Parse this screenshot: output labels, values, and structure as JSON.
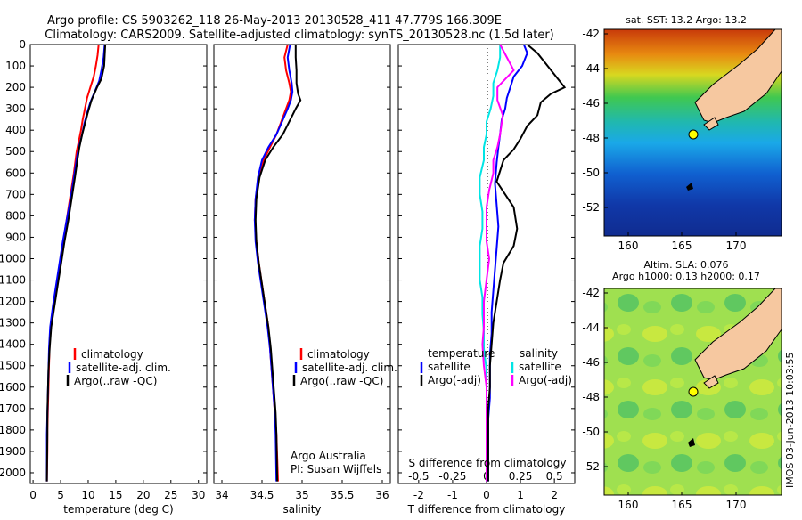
{
  "title": {
    "line1": "Argo profile: CS 5903262_118 26-May-2013 20130528_411 47.779S 166.309E",
    "line2": "Climatology: CARS2009. Satellite-adjusted climatology: synTS_20130528.nc (1.5d later)"
  },
  "colors": {
    "climatology": "#ff0000",
    "satellite": "#0000ff",
    "argo": "#000000",
    "satellite_s": "#00e5e5",
    "argo_s": "#ff00ff"
  },
  "depth_axis": {
    "ylim": [
      2050,
      0
    ],
    "ticks": [
      "0",
      "100",
      "200",
      "300",
      "400",
      "500",
      "600",
      "700",
      "800",
      "900",
      "1000",
      "1100",
      "1200",
      "1300",
      "1400",
      "1500",
      "1600",
      "1700",
      "1800",
      "1900",
      "2000"
    ]
  },
  "chart_data": [
    {
      "id": "temperature",
      "type": "line",
      "xlabel": "temperature (deg C)",
      "xlim": [
        -0.5,
        31.5
      ],
      "xticks": [
        "0",
        "5",
        "10",
        "15",
        "20",
        "25",
        "30"
      ],
      "legend": [
        "climatology",
        "satellite-adj. clim.",
        "Argo(..raw -QC)"
      ],
      "series": [
        {
          "name": "climatology",
          "color_key": "climatology",
          "x": [
            11.9,
            11.7,
            11.4,
            11.0,
            10.4,
            9.8,
            9.4,
            9.0,
            8.7,
            8.3,
            7.9,
            7.4,
            6.8,
            6.2,
            5.6,
            5.0,
            4.5,
            3.9,
            3.3,
            3.0,
            2.9,
            2.8,
            2.7,
            2.6,
            2.6,
            2.5
          ],
          "y": [
            0,
            50,
            100,
            150,
            200,
            250,
            300,
            350,
            400,
            450,
            500,
            600,
            700,
            800,
            900,
            1000,
            1100,
            1200,
            1300,
            1400,
            1500,
            1600,
            1700,
            1800,
            1900,
            2040
          ]
        },
        {
          "name": "satellite-adj. clim.",
          "color_key": "satellite",
          "x": [
            13.0,
            12.8,
            12.4,
            12.0,
            11.2,
            10.4,
            9.8,
            9.3,
            8.9,
            8.4,
            8.0,
            7.4,
            6.8,
            6.1,
            5.4,
            4.8,
            4.2,
            3.6,
            3.1,
            2.9,
            2.8,
            2.7,
            2.6,
            2.5,
            2.5
          ],
          "y": [
            0,
            60,
            120,
            170,
            220,
            270,
            320,
            370,
            420,
            470,
            520,
            620,
            720,
            820,
            920,
            1020,
            1120,
            1220,
            1320,
            1420,
            1520,
            1620,
            1720,
            1820,
            2040
          ]
        },
        {
          "name": "Argo(..raw -QC)",
          "color_key": "argo",
          "x": [
            13.1,
            13.0,
            12.9,
            12.4,
            11.6,
            10.6,
            9.9,
            9.4,
            8.9,
            8.4,
            8.1,
            7.6,
            7.0,
            6.4,
            5.7,
            5.1,
            4.5,
            3.9,
            3.3,
            3.0,
            2.8,
            2.7,
            2.6,
            2.6,
            2.5
          ],
          "y": [
            0,
            50,
            100,
            160,
            200,
            260,
            320,
            370,
            420,
            480,
            530,
            620,
            720,
            820,
            920,
            1020,
            1120,
            1220,
            1320,
            1420,
            1520,
            1620,
            1720,
            1820,
            2040
          ]
        }
      ]
    },
    {
      "id": "salinity",
      "type": "line",
      "xlabel": "salinity",
      "xlim": [
        33.9,
        36.1
      ],
      "xticks": [
        "34",
        "34.5",
        "35",
        "35.5",
        "36"
      ],
      "legend": [
        "climatology",
        "satellite-adj. clim.",
        "Argo(..raw -QC)"
      ],
      "annotation": [
        "Argo Australia",
        "PI: Susan Wijffels"
      ],
      "series": [
        {
          "name": "climatology",
          "color_key": "climatology",
          "x": [
            34.82,
            34.78,
            34.8,
            34.84,
            34.86,
            34.84,
            34.8,
            34.74,
            34.68,
            34.6,
            34.52,
            34.46,
            34.42,
            34.41,
            34.43,
            34.46,
            34.5,
            34.54,
            34.58,
            34.6,
            34.62,
            34.64,
            34.66,
            34.68,
            34.7
          ],
          "y": [
            0,
            60,
            120,
            180,
            220,
            260,
            300,
            360,
            420,
            480,
            540,
            620,
            720,
            820,
            920,
            1020,
            1120,
            1220,
            1320,
            1420,
            1520,
            1620,
            1720,
            1820,
            2040
          ]
        },
        {
          "name": "satellite-adj. clim.",
          "color_key": "satellite",
          "x": [
            34.85,
            34.82,
            34.84,
            34.87,
            34.88,
            34.86,
            34.82,
            34.75,
            34.68,
            34.58,
            34.5,
            34.45,
            34.42,
            34.41,
            34.42,
            34.45,
            34.49,
            34.53,
            34.57,
            34.6,
            34.62,
            34.64,
            34.66,
            34.67,
            34.68
          ],
          "y": [
            0,
            60,
            120,
            180,
            220,
            260,
            300,
            360,
            420,
            480,
            540,
            620,
            720,
            820,
            920,
            1020,
            1120,
            1220,
            1320,
            1420,
            1520,
            1620,
            1720,
            1820,
            2040
          ]
        },
        {
          "name": "Argo(..raw -QC)",
          "color_key": "argo",
          "x": [
            34.92,
            34.92,
            34.93,
            34.93,
            34.95,
            34.98,
            34.92,
            34.84,
            34.76,
            34.64,
            34.54,
            34.47,
            34.43,
            34.42,
            34.43,
            34.46,
            34.5,
            34.54,
            34.58,
            34.61,
            34.63,
            34.65,
            34.67,
            34.68,
            34.69
          ],
          "y": [
            0,
            60,
            120,
            180,
            230,
            260,
            300,
            360,
            420,
            480,
            540,
            620,
            720,
            820,
            920,
            1020,
            1120,
            1220,
            1320,
            1420,
            1520,
            1620,
            1720,
            1820,
            2040
          ]
        }
      ]
    },
    {
      "id": "difference",
      "type": "line",
      "xlabel": "T difference from climatology",
      "xlabel_top": "S difference from climatology",
      "xlim": [
        -2.6,
        2.6
      ],
      "xticks": [
        "-2",
        "-1",
        "0",
        "1",
        "2"
      ],
      "xticks_s": [
        "-0.5",
        "-0.25",
        "0",
        "0.25",
        "0.5"
      ],
      "legend_headers": [
        "temperature",
        "salinity"
      ],
      "legend": [
        "satellite",
        "Argo(-adj)",
        "satellite",
        "Argo(-adj)"
      ],
      "series": [
        {
          "name": "satellite",
          "group": "temperature",
          "color_key": "satellite",
          "x": [
            1.1,
            1.2,
            1.05,
            0.8,
            0.7,
            0.6,
            0.55,
            0.45,
            0.4,
            0.35,
            0.3,
            0.25,
            0.3,
            0.35,
            0.3,
            0.25,
            0.2,
            0.15,
            0.15,
            0.1,
            0.1,
            0.1,
            0.05,
            0.05,
            0.05
          ],
          "y": [
            0,
            40,
            100,
            150,
            200,
            250,
            300,
            350,
            420,
            480,
            550,
            650,
            750,
            850,
            950,
            1050,
            1150,
            1250,
            1350,
            1450,
            1550,
            1650,
            1750,
            1850,
            2040
          ]
        },
        {
          "name": "Argo(-adj)",
          "group": "temperature",
          "color_key": "argo",
          "x": [
            1.2,
            1.5,
            1.8,
            2.3,
            1.9,
            1.6,
            1.5,
            1.2,
            1.0,
            0.8,
            0.5,
            0.3,
            0.8,
            0.9,
            0.8,
            0.5,
            0.4,
            0.3,
            0.2,
            0.15,
            0.1,
            0.1,
            0.05,
            0.05,
            0.05
          ],
          "y": [
            0,
            40,
            100,
            200,
            230,
            270,
            330,
            380,
            440,
            490,
            540,
            640,
            760,
            860,
            940,
            1020,
            1100,
            1200,
            1300,
            1400,
            1500,
            1600,
            1700,
            1800,
            2040
          ]
        },
        {
          "name": "satellite",
          "group": "salinity",
          "color_key": "satellite_s",
          "x": [
            0.1,
            0.1,
            0.08,
            0.05,
            0.05,
            0.03,
            0.0,
            0.0,
            -0.02,
            -0.02,
            -0.05,
            -0.05,
            -0.03,
            -0.03,
            -0.05,
            -0.05,
            -0.05,
            -0.03,
            -0.03,
            -0.02,
            -0.02,
            0.0,
            0.0,
            0.0,
            0.0
          ],
          "y": [
            0,
            60,
            120,
            180,
            240,
            300,
            360,
            420,
            480,
            540,
            620,
            700,
            780,
            860,
            940,
            1020,
            1100,
            1180,
            1260,
            1340,
            1420,
            1520,
            1640,
            1800,
            2040
          ]
        },
        {
          "name": "Argo(-adj)",
          "group": "salinity",
          "color_key": "argo_s",
          "x": [
            0.1,
            0.15,
            0.2,
            0.08,
            0.08,
            0.12,
            0.1,
            0.08,
            0.05,
            0.05,
            0.02,
            0.0,
            0.0,
            0.0,
            0.02,
            0.0,
            -0.02,
            -0.02,
            -0.03,
            -0.02,
            0.0,
            0.0,
            0.0,
            0.0
          ],
          "y": [
            0,
            60,
            120,
            200,
            260,
            330,
            420,
            480,
            540,
            600,
            680,
            760,
            840,
            920,
            1000,
            1100,
            1200,
            1320,
            1400,
            1500,
            1600,
            1700,
            1800,
            2040
          ]
        }
      ]
    }
  ],
  "maps": {
    "lon_ticks": [
      "160",
      "165",
      "170"
    ],
    "lat_ticks": [
      "-42",
      "-44",
      "-46",
      "-48",
      "-50",
      "-52"
    ],
    "sst": {
      "title": "sat. SST: 13.2 Argo: 13.2"
    },
    "sla": {
      "title_line1": "Altim. SLA: 0.076",
      "title_line2": "Argo h1000: 0.13 h2000: 0.17"
    }
  },
  "side_label": "IMOS 03-Jun-2013 10:03:55"
}
